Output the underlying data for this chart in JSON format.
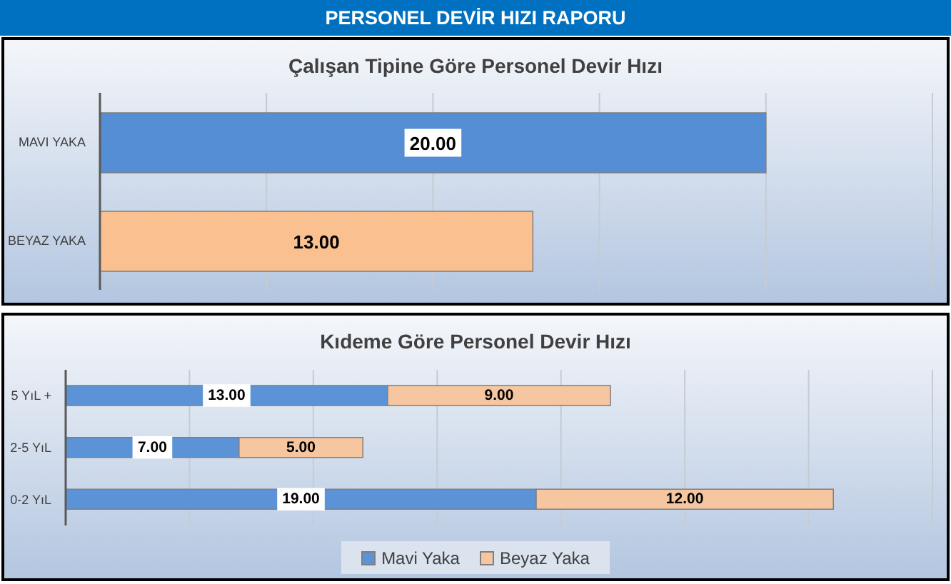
{
  "chart_data": [
    {
      "type": "other",
      "title": "PERSONEL DEVİR HIZI RAPORU"
    },
    {
      "type": "bar",
      "orientation": "horizontal",
      "title": "Çalışan Tipine Göre Personel Devir Hızı",
      "categories": [
        "MAVI YAKA",
        "BEYAZ YAKA"
      ],
      "values": [
        20,
        13
      ],
      "colors": [
        "#558ed5",
        "#fac090"
      ],
      "value_labels": [
        "20.00",
        "13.00"
      ],
      "xlim": [
        0,
        25
      ],
      "grid": "x",
      "tick_labels": "y"
    },
    {
      "type": "bar",
      "orientation": "horizontal",
      "stacked": true,
      "title": "Kıdeme Göre Personel Devir Hızı",
      "categories": [
        "5 YıL +",
        "2-5 YıL",
        "0-2 YıL"
      ],
      "series": [
        {
          "name": "Mavi Yaka",
          "color": "#5b93d6",
          "values": [
            13,
            7,
            19
          ],
          "value_labels": [
            "13.00",
            "7.00",
            "19.00"
          ]
        },
        {
          "name": "Beyaz Yaka",
          "color": "#f5c6a0",
          "values": [
            9,
            5,
            12
          ],
          "value_labels": [
            "9.00",
            "5.00",
            "12.00"
          ]
        }
      ],
      "xlim": [
        0,
        35
      ],
      "grid": "x",
      "tick_labels": "y",
      "legend": "bottom"
    }
  ]
}
